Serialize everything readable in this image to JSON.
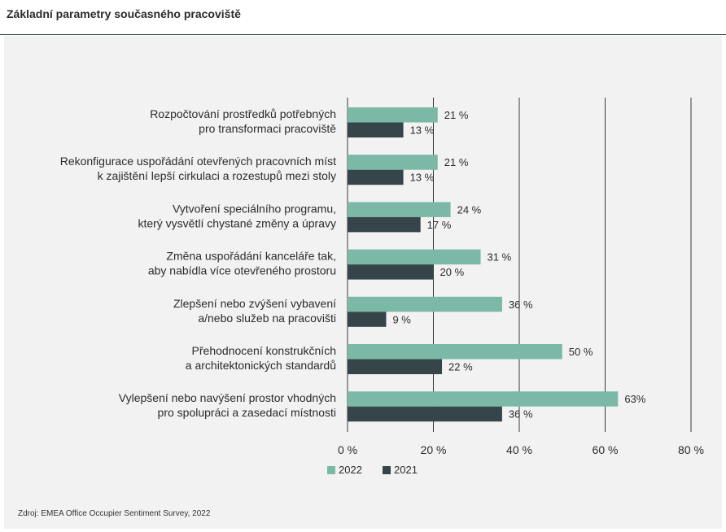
{
  "title": "Základní parametry současného pracoviště",
  "source": "Zdroj: EMEA Office Occupier Sentiment Survey, 2022",
  "colors": {
    "2022": "#7bb9a6",
    "2021": "#36454a",
    "grid": "#3a3a3a",
    "panel": "#f2f2f2"
  },
  "chart_data": {
    "type": "bar",
    "orientation": "horizontal",
    "categories": [
      [
        "Rozpočtování prostředků potřebných",
        "pro transformaci pracoviště"
      ],
      [
        "Rekonfigurace uspořádání otevřených pracovních míst",
        "k zajištění lepší cirkulaci a rozestupů mezi stoly"
      ],
      [
        "Vytvoření speciálního programu,",
        "který vysvětlí chystané změny a úpravy"
      ],
      [
        "Změna uspořádání kanceláře tak,",
        "aby nabídla více otevřeného prostoru"
      ],
      [
        "Zlepšení nebo zvýšení vybavení",
        "a/nebo služeb na pracovišti"
      ],
      [
        "Přehodnocení konstrukčních",
        "a architektonických standardů"
      ],
      [
        "Vylepšení nebo navýšení prostor vhodných",
        "pro spolupráci a zasedací místnosti"
      ]
    ],
    "series": [
      {
        "name": "2022",
        "values": [
          21,
          21,
          24,
          31,
          36,
          50,
          63
        ],
        "labels": [
          "21 %",
          "21 %",
          "24 %",
          "31 %",
          "36 %",
          "50 %",
          "63%"
        ]
      },
      {
        "name": "2021",
        "values": [
          13,
          13,
          17,
          20,
          9,
          22,
          36
        ],
        "labels": [
          "13 %",
          "13 %",
          "17 %",
          "20 %",
          "9 %",
          "22 %",
          "36 %"
        ]
      }
    ],
    "xlim": [
      0,
      80
    ],
    "xticks": [
      0,
      20,
      40,
      60,
      80
    ],
    "xtick_labels": [
      "0 %",
      "20 %",
      "40 %",
      "60 %",
      "80 %"
    ],
    "grid": true,
    "legend": "bottom"
  }
}
